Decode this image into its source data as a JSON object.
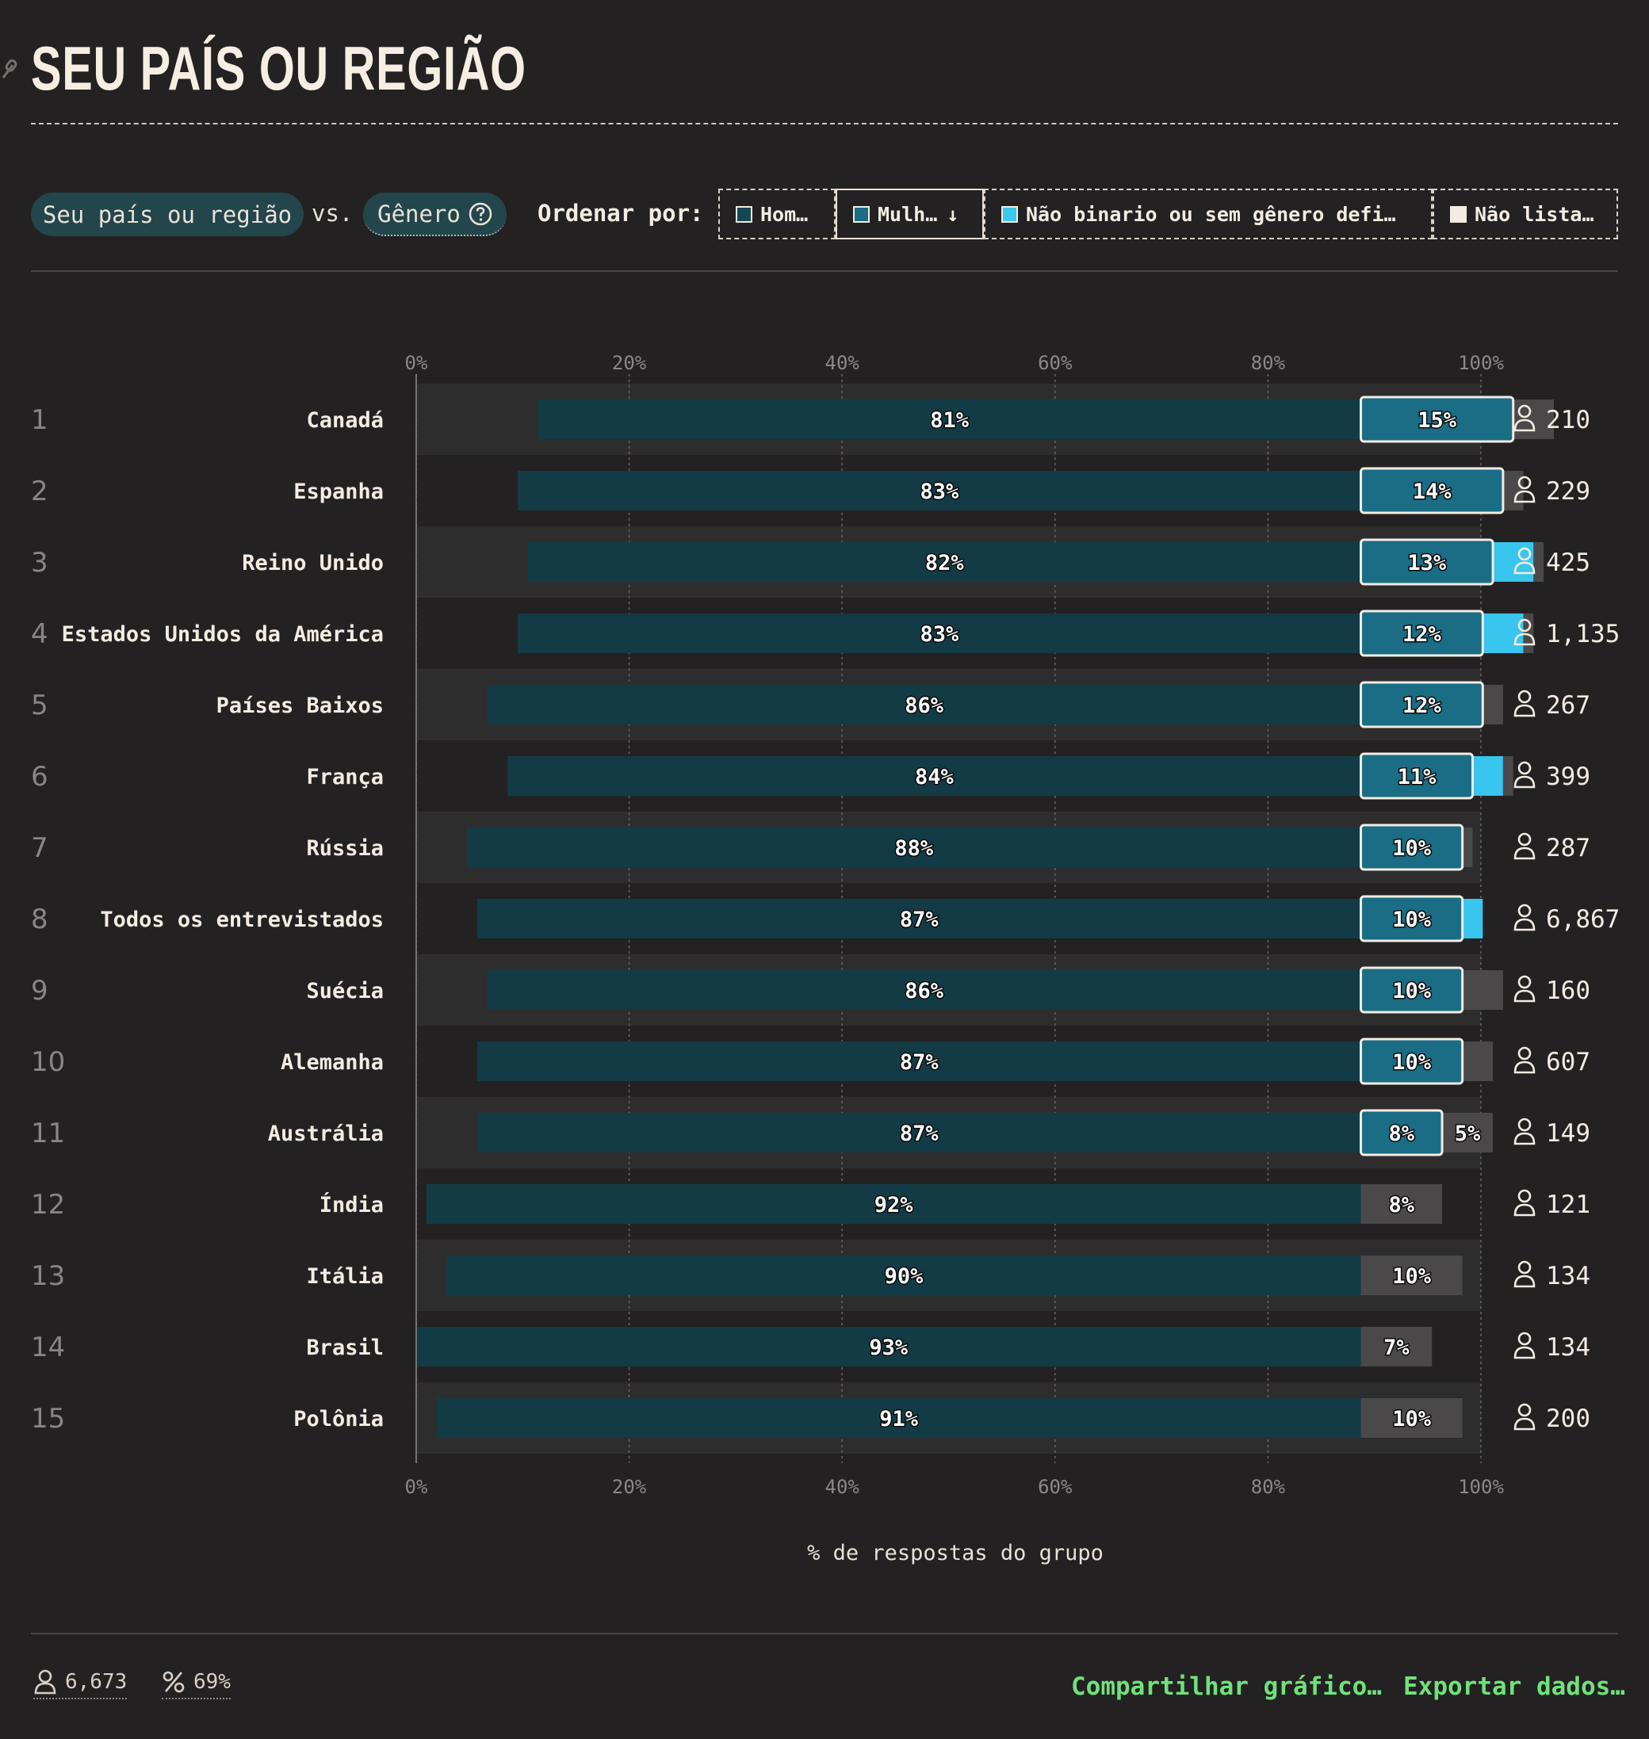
{
  "header": {
    "title": "SEU PAÍS OU REGIÃO"
  },
  "controls": {
    "primary": "Seu país ou região",
    "vs": "vs.",
    "secondary": "Gênero",
    "sort_label": "Ordenar por:",
    "sort_options": [
      {
        "label": "Hom…",
        "color": "#154754",
        "active": false
      },
      {
        "label": "Mulh…",
        "color": "#1a6d84",
        "active": true,
        "arrow": "↓"
      },
      {
        "label": "Não binario ou sem gênero defi…",
        "color": "#3bc8f0",
        "active": false
      },
      {
        "label": "Não lista…",
        "color": "#f3ece3",
        "active": false
      }
    ]
  },
  "colors": {
    "men": "#133b46",
    "women": "#1a6d84",
    "nonbinary": "#38c5ee",
    "unlisted": "#4a4849",
    "row_alt": "#2e2d2e",
    "accent_link": "#6fe27b"
  },
  "chart_data": {
    "type": "bar",
    "stacked": true,
    "orientation": "horizontal",
    "xlabel": "% de respostas do grupo",
    "xlim": [
      0,
      100
    ],
    "x_ticks": [
      "0%",
      "20%",
      "40%",
      "60%",
      "80%",
      "100%"
    ],
    "grid": true,
    "categories": [
      "Canadá",
      "Espanha",
      "Reino Unido",
      "Estados Unidos da América",
      "Países Baixos",
      "França",
      "Rússia",
      "Todos os entrevistados",
      "Suécia",
      "Alemanha",
      "Austrália",
      "Índia",
      "Itália",
      "Brasil",
      "Polônia"
    ],
    "ranks": [
      "1",
      "2",
      "3",
      "4",
      "5",
      "6",
      "7",
      "8",
      "9",
      "10",
      "11",
      "12",
      "13",
      "14",
      "15"
    ],
    "counts": [
      "210",
      "229",
      "425",
      "1,135",
      "267",
      "399",
      "287",
      "6,867",
      "160",
      "607",
      "149",
      "121",
      "134",
      "134",
      "200"
    ],
    "series": [
      {
        "name": "Hom…",
        "values": [
          81,
          83,
          82,
          83,
          86,
          84,
          88,
          87,
          86,
          87,
          87,
          92,
          90,
          93,
          91
        ],
        "labels": [
          "81%",
          "83%",
          "82%",
          "83%",
          "86%",
          "84%",
          "88%",
          "87%",
          "86%",
          "87%",
          "87%",
          "92%",
          "90%",
          "93%",
          "91%"
        ]
      },
      {
        "name": "Mulh…",
        "values": [
          15,
          14,
          13,
          12,
          12,
          11,
          10,
          10,
          10,
          10,
          8,
          0,
          0,
          0,
          0
        ],
        "labels": [
          "15%",
          "14%",
          "13%",
          "12%",
          "12%",
          "11%",
          "10%",
          "10%",
          "10%",
          "10%",
          "8%",
          "",
          "",
          "",
          ""
        ]
      },
      {
        "name": "Não binario ou sem gênero defi…",
        "values": [
          0,
          0,
          4,
          4,
          0,
          3,
          0,
          2,
          0,
          0,
          0,
          0,
          0,
          0,
          0
        ],
        "labels": [
          "",
          "",
          "",
          "",
          "",
          "",
          "",
          "",
          "",
          "",
          "",
          "",
          "",
          "",
          ""
        ]
      },
      {
        "name": "Não lista…",
        "values": [
          4,
          2,
          1,
          1,
          2,
          1,
          1,
          0,
          4,
          3,
          5,
          8,
          10,
          7,
          10
        ],
        "labels": [
          "",
          "",
          "",
          "",
          "",
          "",
          "",
          "",
          "",
          "",
          "5%",
          "8%",
          "10%",
          "7%",
          "10%"
        ]
      }
    ]
  },
  "footer": {
    "respondents": "6,673",
    "percent": "69%",
    "share_link": "Compartilhar gráfico…",
    "export_link": "Exportar dados…"
  }
}
